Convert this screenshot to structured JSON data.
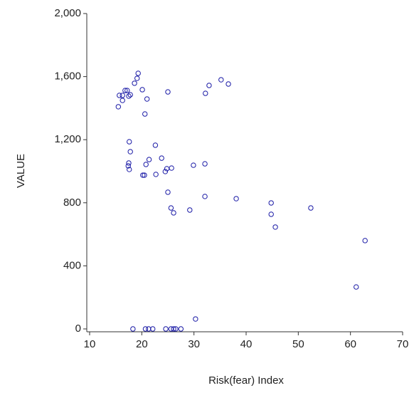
{
  "chart_data": {
    "type": "scatter",
    "x_label": "Risk(fear) Index",
    "y_label": "VALUE",
    "color": "#1a1aa6",
    "xlim": [
      10,
      70
    ],
    "ylim": [
      0,
      2000
    ],
    "xticks": [
      10,
      20,
      30,
      40,
      50,
      60,
      70
    ],
    "yticks": [
      0,
      400,
      800,
      {
        "value": 1200,
        "label": "1,200"
      },
      {
        "value": 1600,
        "label": "1,600"
      },
      {
        "value": 2000,
        "label": "2,000"
      }
    ],
    "x": [
      15.5,
      15.7,
      16.3,
      16.3,
      16.8,
      17.2,
      17.8,
      17.5,
      17.6,
      17.5,
      17.4,
      17.6,
      17.8,
      18.6,
      19.3,
      19.1,
      20.1,
      21.0,
      20.6,
      25.0,
      20.2,
      20.5,
      20.8,
      21.4,
      22.6,
      22.7,
      23.8,
      24.5,
      24.8,
      25.7,
      25.0,
      25.6,
      26.1,
      29.2,
      29.9,
      32.1,
      32.1,
      32.2,
      32.9,
      35.2,
      36.6,
      38.1,
      44.8,
      44.8,
      45.6,
      52.4,
      62.8,
      61.1,
      30.3,
      18.3,
      20.7,
      21.3,
      22.1,
      24.6,
      25.6,
      26.1,
      26.5,
      27.5
    ],
    "values": [
      1409,
      1481,
      1481,
      1449,
      1512,
      1512,
      1485,
      1476,
      1187,
      1052,
      1034,
      1011,
      1124,
      1558,
      1621,
      1589,
      1517,
      1458,
      1363,
      1503,
      975,
      975,
      1043,
      1074,
      1165,
      980,
      1083,
      998,
      1016,
      1020,
      867,
      767,
      736,
      754,
      1038,
      1047,
      840,
      1494,
      1544,
      1580,
      1553,
      826,
      799,
      727,
      646,
      767,
      560,
      266,
      63,
      0,
      0,
      0,
      0,
      0,
      0,
      0,
      0,
      0
    ]
  }
}
